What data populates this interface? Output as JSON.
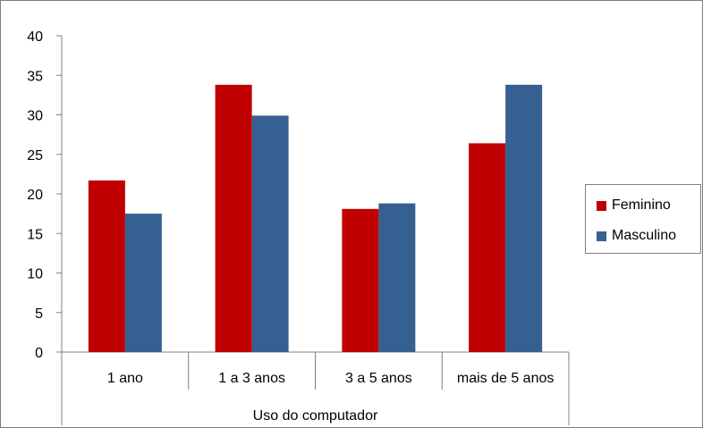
{
  "chart_data": {
    "type": "bar",
    "title": "",
    "xlabel": "Uso do computador",
    "ylabel": "",
    "ylim": [
      0,
      40
    ],
    "yticks": [
      "0",
      "5",
      "10",
      "15",
      "20",
      "25",
      "30",
      "35",
      "40"
    ],
    "categories": [
      "1 ano",
      "1 a 3 anos",
      "3 a 5 anos",
      "mais de 5 anos"
    ],
    "series": [
      {
        "name": "Feminino",
        "color": "#c00000",
        "values": [
          21.7,
          33.8,
          18.1,
          26.4
        ]
      },
      {
        "name": "Masculino",
        "color": "#366092",
        "values": [
          17.5,
          29.9,
          18.8,
          33.8
        ]
      }
    ],
    "legend_position": "right",
    "grid": false
  }
}
